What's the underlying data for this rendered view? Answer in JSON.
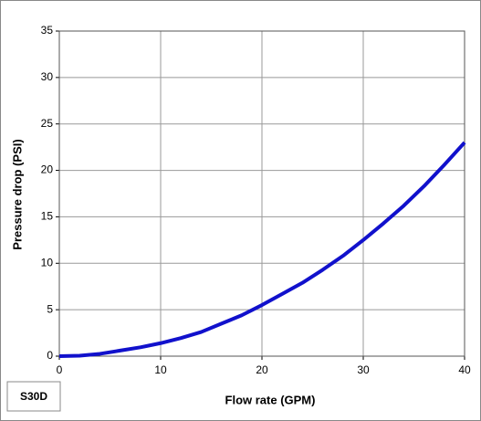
{
  "chart_data": {
    "type": "line",
    "x_label": "Flow rate (GPM)",
    "y_label": "Pressure drop (PSI)",
    "x": [
      0,
      2,
      4,
      6,
      8,
      10,
      12,
      14,
      16,
      18,
      20,
      22,
      24,
      26,
      28,
      30,
      32,
      34,
      36,
      38,
      40
    ],
    "series": [
      {
        "name": "S30D",
        "color": "#1111cc",
        "values": [
          0,
          0.05,
          0.25,
          0.6,
          0.95,
          1.4,
          1.95,
          2.6,
          3.5,
          4.4,
          5.5,
          6.7,
          7.9,
          9.3,
          10.8,
          12.5,
          14.3,
          16.2,
          18.3,
          20.6,
          23.0
        ]
      }
    ],
    "xlim": [
      0,
      40
    ],
    "xticks": [
      0,
      10,
      20,
      30,
      40
    ],
    "ylim": [
      0,
      35
    ],
    "yticks": [
      0,
      5,
      10,
      15,
      20,
      25,
      30,
      35
    ],
    "grid": true,
    "legend": "bottom-left"
  }
}
